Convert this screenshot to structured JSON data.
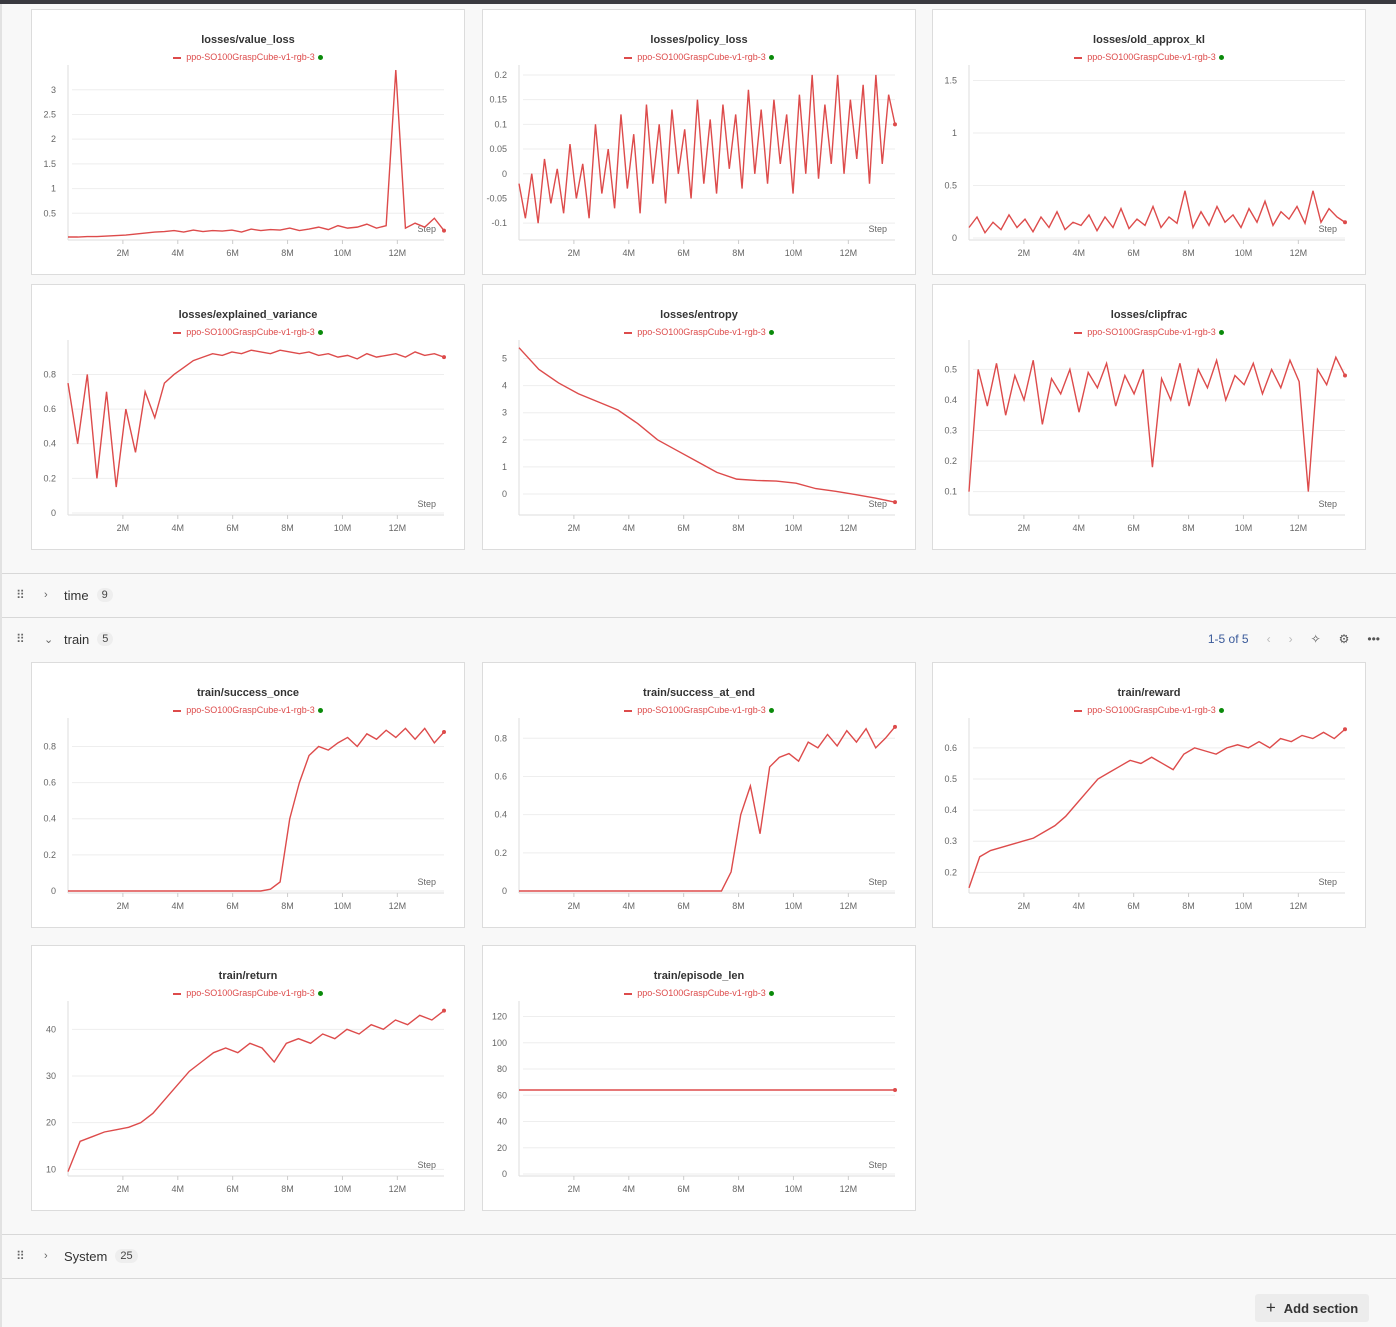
{
  "run_name": "ppo-SO100GraspCube-v1-rgb-3",
  "colors": {
    "series": "#dd4b4b",
    "run_dot": "#0a8a0a"
  },
  "x_axis": {
    "label": "Step",
    "max": 13.7,
    "ticks": [
      2,
      4,
      6,
      8,
      10,
      12
    ],
    "tick_labels": [
      "2M",
      "4M",
      "6M",
      "8M",
      "10M",
      "12M"
    ]
  },
  "sections": [
    {
      "name": "time",
      "count": "9",
      "expanded": false
    },
    {
      "name": "train",
      "count": "5",
      "expanded": true,
      "pager": "1-5 of 5"
    },
    {
      "name": "System",
      "count": "25",
      "expanded": false
    }
  ],
  "add_section_label": "Add section",
  "chart_data": [
    {
      "type": "line",
      "title": "losses/value_loss",
      "ylim": [
        0,
        3.4
      ],
      "yticks": [
        0.5,
        1,
        1.5,
        2,
        2.5,
        3
      ],
      "ytick_labels": [
        "0.5",
        "1",
        "1.5",
        "2",
        "2.5",
        "3"
      ],
      "y": [
        0.02,
        0.02,
        0.03,
        0.03,
        0.04,
        0.05,
        0.06,
        0.08,
        0.1,
        0.12,
        0.13,
        0.15,
        0.12,
        0.16,
        0.13,
        0.15,
        0.14,
        0.16,
        0.12,
        0.18,
        0.15,
        0.17,
        0.16,
        0.2,
        0.15,
        0.18,
        0.22,
        0.17,
        0.25,
        0.2,
        0.22,
        0.28,
        0.2,
        0.25,
        3.4,
        0.2,
        0.3,
        0.22,
        0.4,
        0.15
      ]
    },
    {
      "type": "line",
      "title": "losses/policy_loss",
      "ylim": [
        -0.13,
        0.21
      ],
      "yticks": [
        -0.1,
        -0.05,
        0,
        0.05,
        0.1,
        0.15,
        0.2
      ],
      "ytick_labels": [
        "-0.1",
        "-0.05",
        "0",
        "0.05",
        "0.1",
        "0.15",
        "0.2"
      ],
      "y": [
        -0.02,
        -0.09,
        0.0,
        -0.1,
        0.03,
        -0.06,
        0.01,
        -0.08,
        0.06,
        -0.05,
        0.02,
        -0.09,
        0.1,
        -0.04,
        0.05,
        -0.07,
        0.12,
        -0.03,
        0.08,
        -0.08,
        0.14,
        -0.02,
        0.1,
        -0.06,
        0.13,
        0.0,
        0.09,
        -0.05,
        0.15,
        -0.02,
        0.11,
        -0.04,
        0.14,
        0.01,
        0.12,
        -0.03,
        0.17,
        0.0,
        0.13,
        -0.02,
        0.15,
        0.02,
        0.12,
        -0.04,
        0.16,
        0.0,
        0.2,
        -0.01,
        0.14,
        0.02,
        0.2,
        0.0,
        0.15,
        0.03,
        0.18,
        -0.02,
        0.2,
        0.02,
        0.16,
        0.1
      ]
    },
    {
      "type": "line",
      "title": "losses/old_approx_kl",
      "ylim": [
        0,
        1.6
      ],
      "yticks": [
        0,
        0.5,
        1,
        1.5
      ],
      "ytick_labels": [
        "0",
        "0.5",
        "1",
        "1.5"
      ],
      "y": [
        0.1,
        0.2,
        0.05,
        0.15,
        0.08,
        0.22,
        0.1,
        0.18,
        0.06,
        0.2,
        0.1,
        0.25,
        0.08,
        0.15,
        0.12,
        0.22,
        0.07,
        0.2,
        0.1,
        0.28,
        0.09,
        0.18,
        0.12,
        0.3,
        0.1,
        0.2,
        0.14,
        0.45,
        0.1,
        0.25,
        0.12,
        0.3,
        0.15,
        0.22,
        0.1,
        0.28,
        0.15,
        0.35,
        0.12,
        0.25,
        0.18,
        0.3,
        0.14,
        0.45,
        0.15,
        0.28,
        0.2,
        0.15
      ]
    },
    {
      "type": "line",
      "title": "losses/explained_variance",
      "ylim": [
        0,
        0.97
      ],
      "yticks": [
        0,
        0.2,
        0.4,
        0.6,
        0.8
      ],
      "ytick_labels": [
        "0",
        "0.2",
        "0.4",
        "0.6",
        "0.8"
      ],
      "y": [
        0.75,
        0.4,
        0.8,
        0.2,
        0.7,
        0.15,
        0.6,
        0.35,
        0.7,
        0.55,
        0.75,
        0.8,
        0.84,
        0.88,
        0.9,
        0.92,
        0.91,
        0.93,
        0.92,
        0.94,
        0.93,
        0.92,
        0.94,
        0.93,
        0.92,
        0.93,
        0.91,
        0.92,
        0.9,
        0.91,
        0.89,
        0.92,
        0.9,
        0.91,
        0.92,
        0.9,
        0.93,
        0.91,
        0.92,
        0.9
      ]
    },
    {
      "type": "line",
      "title": "losses/entropy",
      "ylim": [
        -0.7,
        5.5
      ],
      "yticks": [
        0,
        1,
        2,
        3,
        4,
        5
      ],
      "ytick_labels": [
        "0",
        "1",
        "2",
        "3",
        "4",
        "5"
      ],
      "y": [
        5.4,
        4.6,
        4.1,
        3.7,
        3.4,
        3.1,
        2.6,
        2.0,
        1.6,
        1.2,
        0.8,
        0.55,
        0.5,
        0.48,
        0.4,
        0.2,
        0.1,
        -0.02,
        -0.15,
        -0.3
      ]
    },
    {
      "type": "line",
      "title": "losses/clipfrac",
      "ylim": [
        0.03,
        0.58
      ],
      "yticks": [
        0.1,
        0.2,
        0.3,
        0.4,
        0.5
      ],
      "ytick_labels": [
        "0.1",
        "0.2",
        "0.3",
        "0.4",
        "0.5"
      ],
      "y": [
        0.1,
        0.5,
        0.38,
        0.52,
        0.35,
        0.48,
        0.4,
        0.53,
        0.32,
        0.47,
        0.42,
        0.5,
        0.36,
        0.49,
        0.44,
        0.52,
        0.38,
        0.48,
        0.42,
        0.5,
        0.18,
        0.47,
        0.4,
        0.52,
        0.38,
        0.5,
        0.44,
        0.53,
        0.4,
        0.48,
        0.45,
        0.52,
        0.42,
        0.5,
        0.44,
        0.53,
        0.46,
        0.1,
        0.5,
        0.45,
        0.54,
        0.48
      ]
    },
    {
      "type": "line",
      "title": "train/success_once",
      "ylim": [
        0,
        0.93
      ],
      "yticks": [
        0,
        0.2,
        0.4,
        0.6,
        0.8
      ],
      "ytick_labels": [
        "0",
        "0.2",
        "0.4",
        "0.6",
        "0.8"
      ],
      "y": [
        0,
        0,
        0,
        0,
        0,
        0,
        0,
        0,
        0,
        0,
        0,
        0,
        0,
        0,
        0,
        0,
        0,
        0,
        0,
        0,
        0,
        0.01,
        0.05,
        0.4,
        0.6,
        0.75,
        0.8,
        0.78,
        0.82,
        0.85,
        0.8,
        0.87,
        0.84,
        0.89,
        0.85,
        0.9,
        0.84,
        0.9,
        0.82,
        0.88
      ]
    },
    {
      "type": "line",
      "title": "train/success_at_end",
      "ylim": [
        0,
        0.88
      ],
      "yticks": [
        0,
        0.2,
        0.4,
        0.6,
        0.8
      ],
      "ytick_labels": [
        "0",
        "0.2",
        "0.4",
        "0.6",
        "0.8"
      ],
      "y": [
        0,
        0,
        0,
        0,
        0,
        0,
        0,
        0,
        0,
        0,
        0,
        0,
        0,
        0,
        0,
        0,
        0,
        0,
        0,
        0,
        0,
        0,
        0.1,
        0.4,
        0.55,
        0.3,
        0.65,
        0.7,
        0.72,
        0.68,
        0.78,
        0.75,
        0.82,
        0.76,
        0.84,
        0.78,
        0.85,
        0.75,
        0.8,
        0.86
      ]
    },
    {
      "type": "line",
      "title": "train/reward",
      "ylim": [
        0.14,
        0.68
      ],
      "yticks": [
        0.2,
        0.3,
        0.4,
        0.5,
        0.6
      ],
      "ytick_labels": [
        "0.2",
        "0.3",
        "0.4",
        "0.5",
        "0.6"
      ],
      "y": [
        0.15,
        0.25,
        0.27,
        0.28,
        0.29,
        0.3,
        0.31,
        0.33,
        0.35,
        0.38,
        0.42,
        0.46,
        0.5,
        0.52,
        0.54,
        0.56,
        0.55,
        0.57,
        0.55,
        0.53,
        0.58,
        0.6,
        0.59,
        0.58,
        0.6,
        0.61,
        0.6,
        0.62,
        0.6,
        0.63,
        0.62,
        0.64,
        0.63,
        0.65,
        0.63,
        0.66
      ]
    },
    {
      "type": "line",
      "title": "train/return",
      "ylim": [
        9,
        45
      ],
      "yticks": [
        10,
        20,
        30,
        40
      ],
      "ytick_labels": [
        "10",
        "20",
        "30",
        "40"
      ],
      "y": [
        9.5,
        16,
        17,
        18,
        18.5,
        19,
        20,
        22,
        25,
        28,
        31,
        33,
        35,
        36,
        35,
        37,
        36,
        33,
        37,
        38,
        37,
        39,
        38,
        40,
        39,
        41,
        40,
        42,
        41,
        43,
        42,
        44
      ]
    },
    {
      "type": "line",
      "title": "train/episode_len",
      "ylim": [
        0,
        128
      ],
      "yticks": [
        0,
        20,
        40,
        60,
        80,
        100,
        120
      ],
      "ytick_labels": [
        "0",
        "20",
        "40",
        "60",
        "80",
        "100",
        "120"
      ],
      "y": [
        64,
        64
      ]
    }
  ]
}
